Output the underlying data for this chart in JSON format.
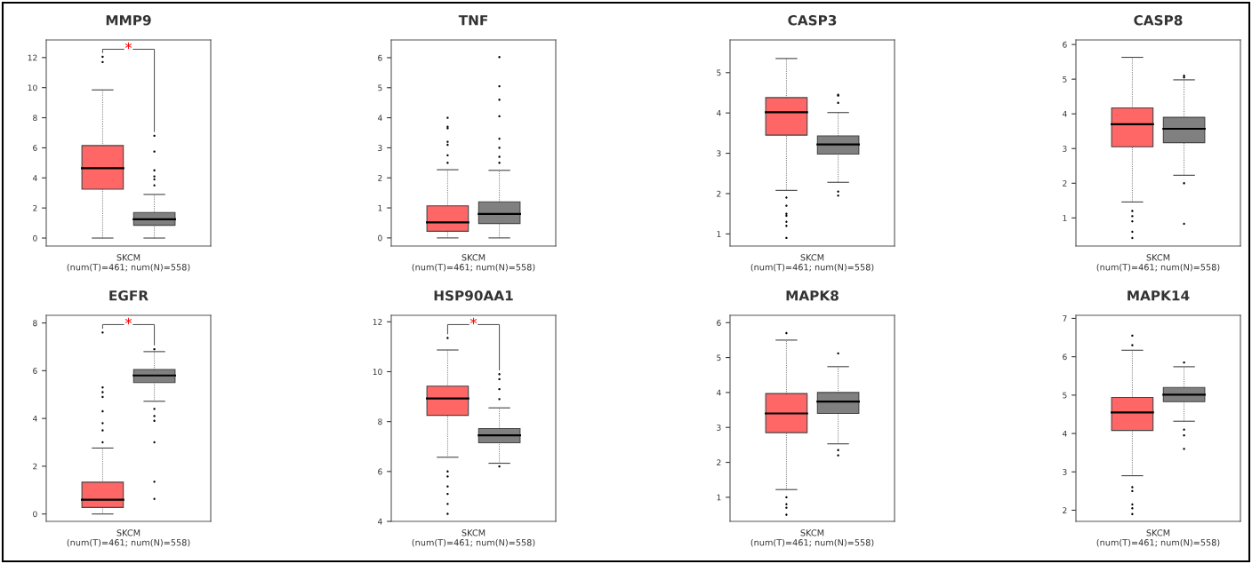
{
  "chart_data": [
    {
      "type": "box",
      "title": "MMP9",
      "categories": [
        null,
        null
      ],
      "xlabel": "SKCM\n(num(T)=461; num(N)=558)",
      "ylim": [
        -0.53,
        13.17
      ],
      "yticks": [
        0,
        2,
        4,
        6,
        8,
        10,
        12
      ],
      "annotations": [
        "*"
      ],
      "colors": [
        "#ff6666",
        "#808080"
      ],
      "boxes": [
        {
          "low": 0,
          "q1": 3.25,
          "median": 4.65,
          "q3": 6.15,
          "high": 9.85,
          "outliers": [
            11.7,
            12.05
          ]
        },
        {
          "low": 0,
          "q1": 0.85,
          "median": 1.25,
          "q3": 1.7,
          "high": 2.9,
          "outliers": [
            3.5,
            3.9,
            4.1,
            4.5,
            5.75,
            6.8
          ]
        }
      ]
    },
    {
      "type": "box",
      "title": "TNF",
      "categories": [
        null,
        null
      ],
      "xlabel": "SKCM\n(num(T)=461; num(N)=558)",
      "ylim": [
        -0.27,
        6.59
      ],
      "yticks": [
        0,
        1,
        2,
        3,
        4,
        5,
        6
      ],
      "colors": [
        "#ff6666",
        "#808080"
      ],
      "boxes": [
        {
          "low": 0,
          "q1": 0.22,
          "median": 0.52,
          "q3": 1.07,
          "high": 2.27,
          "outliers": [
            2.5,
            2.75,
            3.1,
            3.2,
            3.65,
            3.7,
            4.0
          ]
        },
        {
          "low": 0,
          "q1": 0.48,
          "median": 0.8,
          "q3": 1.2,
          "high": 2.25,
          "outliers": [
            2.5,
            2.7,
            3.0,
            3.3,
            4.05,
            4.6,
            5.05,
            6.02
          ]
        }
      ]
    },
    {
      "type": "box",
      "title": "CASP3",
      "categories": [
        null,
        null
      ],
      "xlabel": "SKCM\n(num(T)=461; num(N)=558)",
      "ylim": [
        0.7,
        5.81
      ],
      "yticks": [
        1,
        2,
        3,
        4,
        5
      ],
      "colors": [
        "#ff6666",
        "#808080"
      ],
      "boxes": [
        {
          "low": 2.08,
          "q1": 3.45,
          "median": 4.02,
          "q3": 4.38,
          "high": 5.35,
          "outliers": [
            0.9,
            1.2,
            1.3,
            1.45,
            1.5,
            1.7,
            1.9
          ]
        },
        {
          "low": 2.28,
          "q1": 2.98,
          "median": 3.22,
          "q3": 3.43,
          "high": 4.01,
          "outliers": [
            1.95,
            2.05,
            4.25,
            4.43,
            4.45
          ]
        }
      ]
    },
    {
      "type": "box",
      "title": "CASP8",
      "categories": [
        null,
        null
      ],
      "xlabel": "SKCM\n(num(T)=461; num(N)=558)",
      "ylim": [
        0.19,
        6.13
      ],
      "yticks": [
        1,
        2,
        3,
        4,
        5,
        6
      ],
      "colors": [
        "#ff6666",
        "#808080"
      ],
      "boxes": [
        {
          "low": 1.46,
          "q1": 3.05,
          "median": 3.7,
          "q3": 4.17,
          "high": 5.63,
          "outliers": [
            0.42,
            0.6,
            0.9,
            1.05,
            1.2
          ]
        },
        {
          "low": 2.23,
          "q1": 3.17,
          "median": 3.57,
          "q3": 3.9,
          "high": 4.98,
          "outliers": [
            0.83,
            2.0,
            5.05,
            5.1
          ]
        }
      ]
    },
    {
      "type": "box",
      "title": "EGFR",
      "categories": [
        null,
        null
      ],
      "xlabel": "SKCM\n(num(T)=461; num(N)=558)",
      "ylim": [
        -0.31,
        8.32
      ],
      "yticks": [
        0,
        2,
        4,
        6,
        8
      ],
      "annotations": [
        "*"
      ],
      "colors": [
        "#ff6666",
        "#808080"
      ],
      "boxes": [
        {
          "low": 0,
          "q1": 0.27,
          "median": 0.6,
          "q3": 1.33,
          "high": 2.76,
          "outliers": [
            3.0,
            3.5,
            3.8,
            4.3,
            4.9,
            5.1,
            5.3,
            7.6
          ]
        },
        {
          "low": 4.72,
          "q1": 5.5,
          "median": 5.8,
          "q3": 6.05,
          "high": 6.8,
          "outliers": [
            0.63,
            1.35,
            3.0,
            3.9,
            4.1,
            4.4,
            6.9
          ]
        }
      ]
    },
    {
      "type": "box",
      "title": "HSP90AA1",
      "categories": [
        null,
        null
      ],
      "xlabel": "SKCM\n(num(T)=461; num(N)=558)",
      "ylim": [
        4,
        12.26
      ],
      "yticks": [
        4,
        6,
        8,
        10,
        12
      ],
      "annotations": [
        "*"
      ],
      "colors": [
        "#ff6666",
        "#808080"
      ],
      "boxes": [
        {
          "low": 6.57,
          "q1": 8.25,
          "median": 8.93,
          "q3": 9.42,
          "high": 10.87,
          "outliers": [
            4.3,
            4.7,
            5.1,
            5.4,
            5.8,
            6.0,
            11.35
          ]
        },
        {
          "low": 6.33,
          "q1": 7.15,
          "median": 7.45,
          "q3": 7.72,
          "high": 8.55,
          "outliers": [
            6.2,
            8.9,
            9.3,
            9.7,
            9.9
          ]
        }
      ]
    },
    {
      "type": "box",
      "title": "MAPK8",
      "categories": [
        null,
        null
      ],
      "xlabel": "SKCM\n(num(T)=461; num(N)=558)",
      "ylim": [
        0.31,
        6.21
      ],
      "yticks": [
        1,
        2,
        3,
        4,
        5,
        6
      ],
      "colors": [
        "#ff6666",
        "#808080"
      ],
      "boxes": [
        {
          "low": 1.22,
          "q1": 2.85,
          "median": 3.4,
          "q3": 3.97,
          "high": 5.5,
          "outliers": [
            0.5,
            0.7,
            0.8,
            1.0,
            5.7
          ]
        },
        {
          "low": 2.53,
          "q1": 3.4,
          "median": 3.74,
          "q3": 4.0,
          "high": 4.74,
          "outliers": [
            2.2,
            2.35,
            5.12
          ]
        }
      ]
    },
    {
      "type": "box",
      "title": "MAPK14",
      "categories": [
        null,
        null
      ],
      "xlabel": "SKCM\n(num(T)=461; num(N)=558)",
      "ylim": [
        1.71,
        7.08
      ],
      "yticks": [
        2,
        3,
        4,
        5,
        6,
        7
      ],
      "colors": [
        "#ff6666",
        "#808080"
      ],
      "boxes": [
        {
          "low": 2.9,
          "q1": 4.08,
          "median": 4.55,
          "q3": 4.94,
          "high": 6.17,
          "outliers": [
            1.9,
            2.05,
            2.15,
            2.5,
            2.6,
            6.3,
            6.55
          ]
        },
        {
          "low": 4.32,
          "q1": 4.83,
          "median": 5.01,
          "q3": 5.2,
          "high": 5.74,
          "outliers": [
            3.6,
            3.95,
            4.1,
            5.85
          ]
        }
      ]
    }
  ]
}
